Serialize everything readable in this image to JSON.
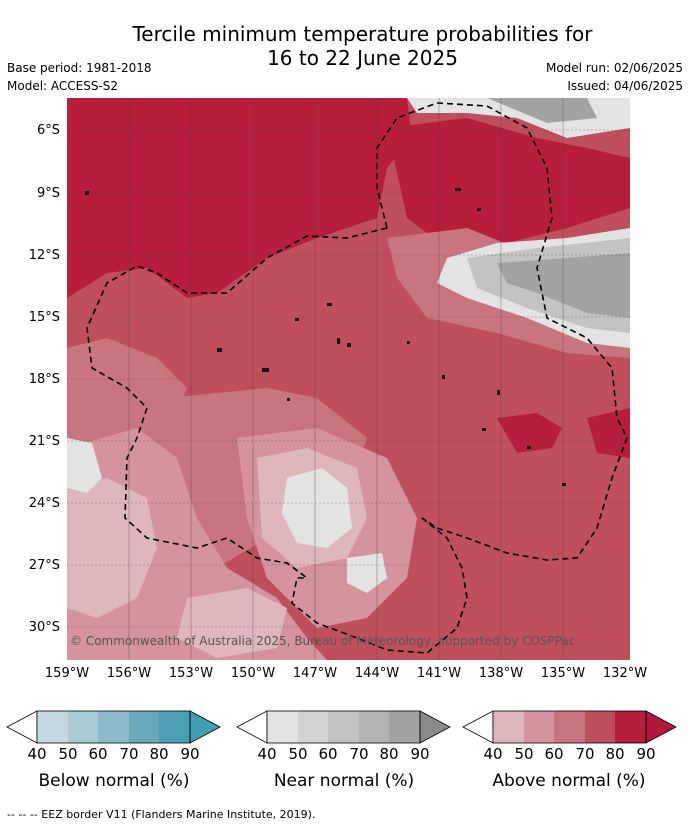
{
  "title_line1": "Tercile minimum temperature probabilities for",
  "title_line2": "16 to 22 June 2025",
  "base_period": "Base period: 1981-2018",
  "model": "Model: ACCESS-S2",
  "model_run": "Model run: 02/06/2025",
  "issued": "Issued: 04/06/2025",
  "credit": "© Commonwealth of Australia 2025, Bureau of Meteorology, supported by COSPPac",
  "footnote": "-- -- -- EEZ border V11 (Flanders Marine Institute, 2019).",
  "lat_labels": [
    "6°S",
    "9°S",
    "12°S",
    "15°S",
    "18°S",
    "21°S",
    "24°S",
    "27°S",
    "30°S"
  ],
  "lon_labels": [
    "159°W",
    "156°W",
    "153°W",
    "150°W",
    "147°W",
    "144°W",
    "141°W",
    "138°W",
    "135°W",
    "132°W"
  ],
  "colorbars": [
    {
      "title": "Below normal (%)",
      "ticks": [
        "40",
        "50",
        "60",
        "70",
        "80",
        "90"
      ],
      "colors": [
        "#c3d9e0",
        "#a8cbd5",
        "#8bbac8",
        "#6aa9bb",
        "#4aa0b2"
      ]
    },
    {
      "title": "Near normal (%)",
      "ticks": [
        "40",
        "50",
        "60",
        "70",
        "80",
        "90"
      ],
      "colors": [
        "#e3e3e3",
        "#d3d3d3",
        "#c3c3c3",
        "#b3b3b3",
        "#a3a3a3"
      ]
    },
    {
      "title": "Above normal (%)",
      "ticks": [
        "40",
        "50",
        "60",
        "70",
        "80",
        "90"
      ],
      "colors": [
        "#e0b6bd",
        "#d4939d",
        "#c97580",
        "#bf4f5d",
        "#b61e3b"
      ]
    }
  ],
  "colors": {
    "above_40": "#e0b6bd",
    "above_50": "#d4939d",
    "above_60": "#c97580",
    "above_70": "#bf4f5d",
    "above_80": "#b61e3b",
    "near_40": "#e3e3e3",
    "near_60": "#c3c3c3",
    "near_80": "#a3a3a3"
  }
}
